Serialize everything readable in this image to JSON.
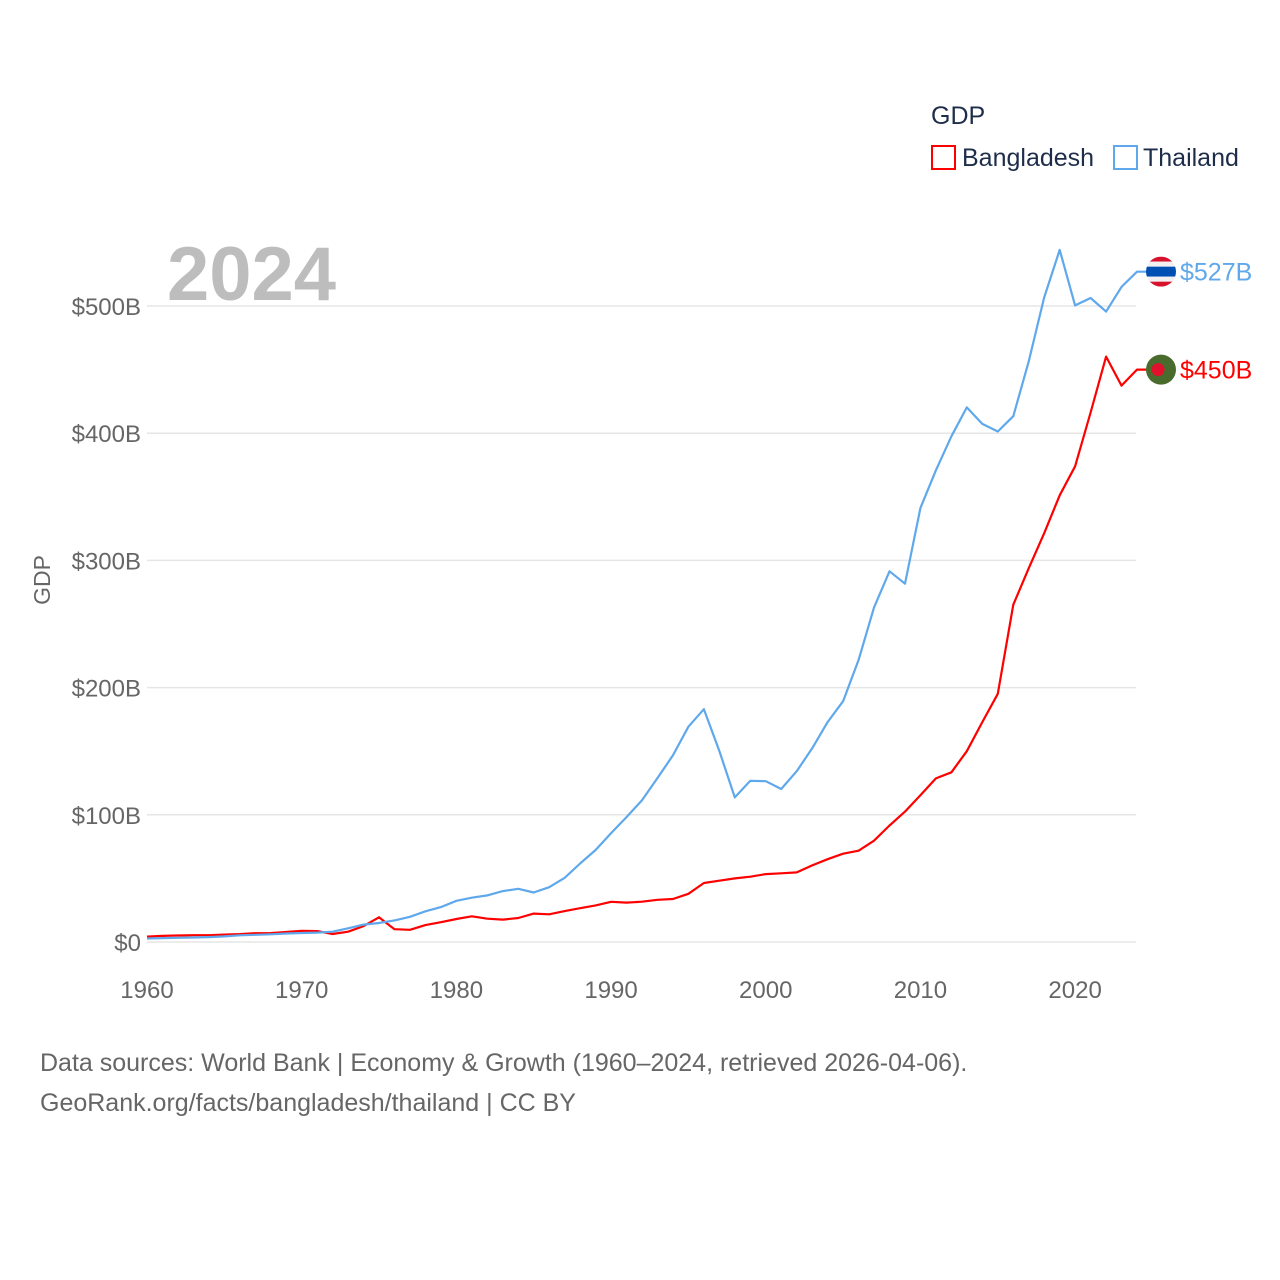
{
  "chart_data": {
    "type": "line",
    "ylabel": "GDP",
    "xlabel": "",
    "year_label": "2024",
    "xlim": [
      1960,
      2024
    ],
    "ylim": [
      0,
      560
    ],
    "x_ticks": [
      "1960",
      "1970",
      "1980",
      "1990",
      "2000",
      "2010",
      "2020"
    ],
    "y_ticks": [
      {
        "value": 0,
        "label": "$0"
      },
      {
        "value": 100,
        "label": "$100B"
      },
      {
        "value": 200,
        "label": "$200B"
      },
      {
        "value": 300,
        "label": "$300B"
      },
      {
        "value": 400,
        "label": "$400B"
      },
      {
        "value": 500,
        "label": "$500B"
      }
    ],
    "legend": {
      "title": "GDP",
      "position": "top-right"
    },
    "x_start": 1960,
    "series": [
      {
        "name": "Bangladesh",
        "color": "#ff0000",
        "end_label": "$450B",
        "flag": "bangladesh-flag",
        "values": [
          4.27,
          4.82,
          5.08,
          5.32,
          5.37,
          5.79,
          6.22,
          6.92,
          7.0,
          7.9,
          8.8,
          8.6,
          6.3,
          8.1,
          12.5,
          19.4,
          10.1,
          9.6,
          13.3,
          15.6,
          18.1,
          20.2,
          18.3,
          17.6,
          18.9,
          22.3,
          21.8,
          24.3,
          26.6,
          28.8,
          31.6,
          31.0,
          31.7,
          33.2,
          33.8,
          37.9,
          46.4,
          48.2,
          50.0,
          51.3,
          53.4,
          54.0,
          54.7,
          60.2,
          65.1,
          69.4,
          71.8,
          79.6,
          91.6,
          102.5,
          115.3,
          128.6,
          133.4,
          150.0,
          172.9,
          195.1,
          265.2,
          293.8,
          321.4,
          351.2,
          374.0,
          416.3,
          460.2,
          437.4,
          450
        ]
      },
      {
        "name": "Thailand",
        "color": "#5fa8ec",
        "end_label": "$527B",
        "flag": "thailand-flag",
        "values": [
          2.76,
          3.03,
          3.31,
          3.54,
          3.89,
          4.39,
          5.28,
          5.64,
          6.08,
          6.69,
          7.09,
          7.36,
          8.11,
          10.8,
          13.7,
          14.9,
          17.0,
          19.8,
          24.1,
          27.4,
          32.4,
          34.8,
          36.6,
          40.0,
          41.8,
          38.9,
          43.1,
          50.5,
          61.7,
          72.3,
          85.6,
          98.2,
          111.5,
          128.9,
          146.7,
          169.3,
          183.0,
          150.2,
          113.7,
          126.7,
          126.4,
          120.3,
          134.3,
          152.3,
          172.9,
          189.3,
          221.8,
          262.9,
          291.4,
          281.7,
          341.1,
          370.8,
          397.6,
          420.3,
          407.3,
          401.3,
          413.4,
          456.4,
          506.8,
          544.1,
          500.5,
          506.3,
          495.6,
          515.0,
          527
        ]
      }
    ]
  },
  "footer": {
    "line1": "Data sources: World Bank | Economy & Growth (1960–2024, retrieved 2026-04-06).",
    "line2": "GeoRank.org/facts/bangladesh/thailand | CC BY"
  }
}
